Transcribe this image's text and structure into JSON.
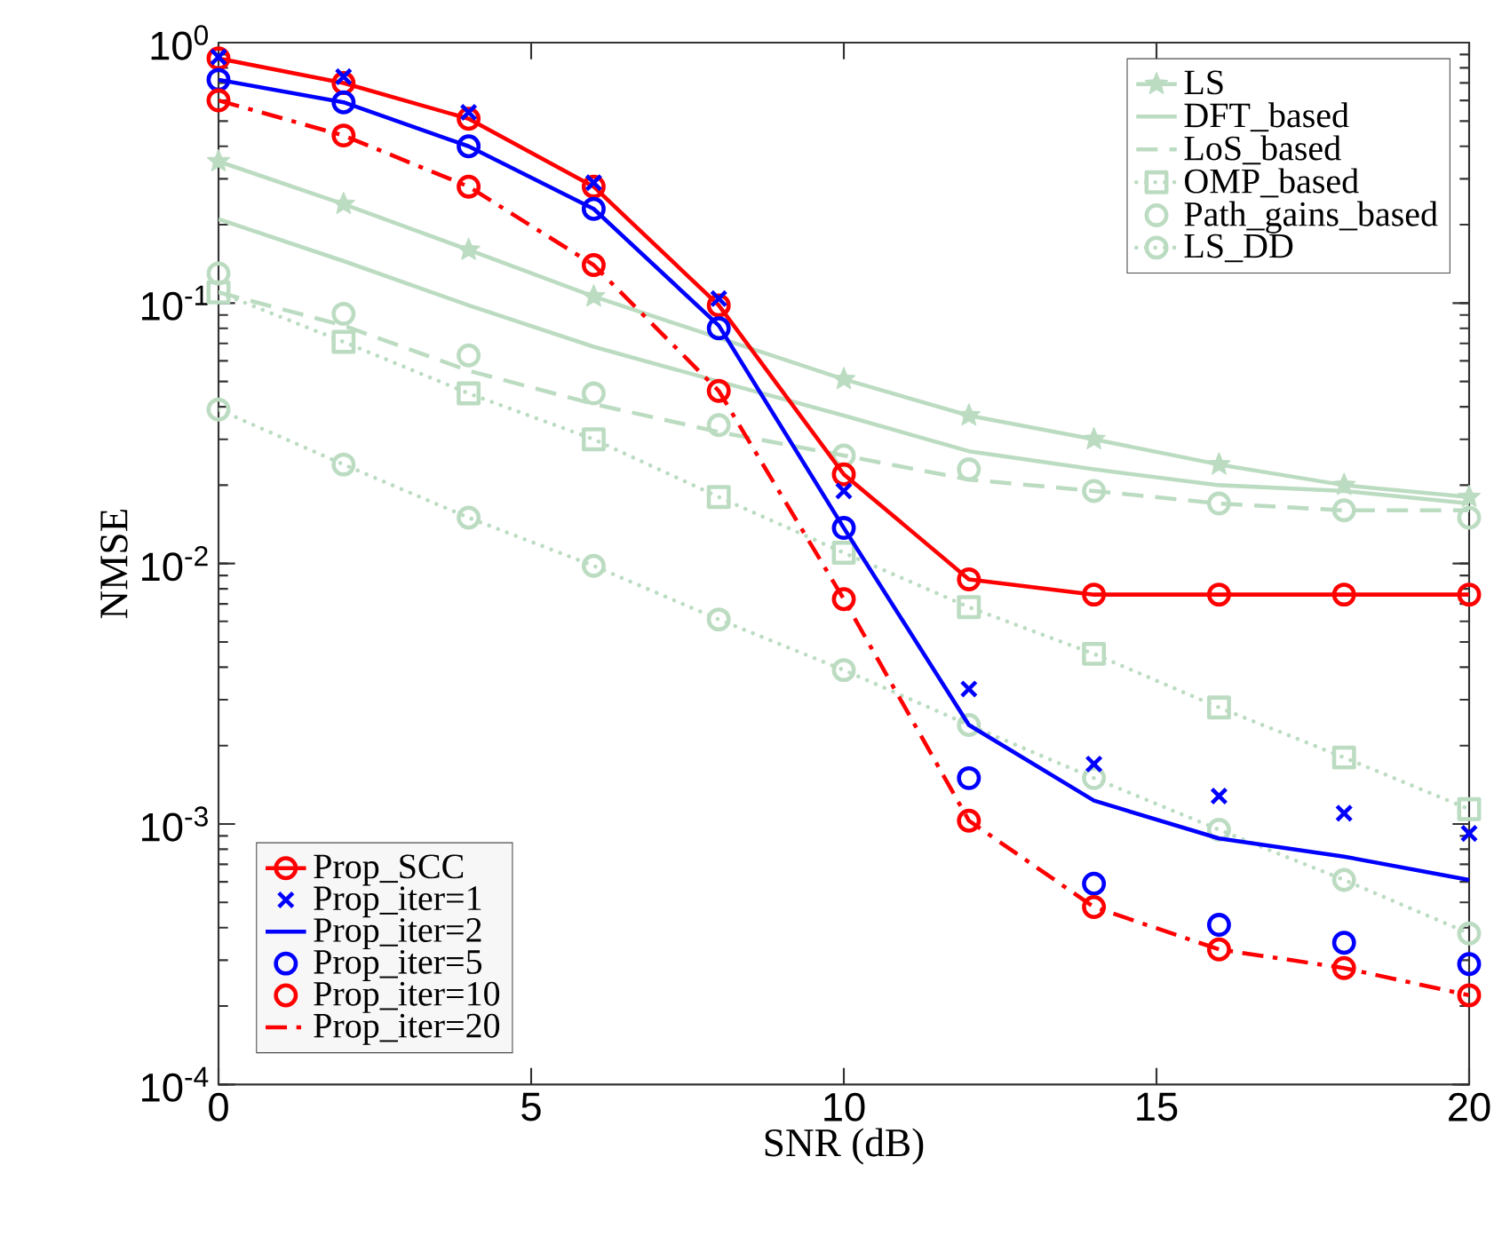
{
  "chart_data": {
    "type": "line",
    "xlabel": "SNR (dB)",
    "ylabel": "NMSE",
    "log": true,
    "grid": false,
    "legend": "top right",
    "x": [
      0,
      2,
      4,
      6,
      8,
      10,
      12,
      14,
      16,
      18,
      20
    ],
    "xlim": [
      0,
      20
    ],
    "xticks": [
      0,
      5,
      10,
      15,
      20
    ],
    "ylim": [
      0.0001,
      1
    ],
    "yticks": [
      {
        "value": 0.0001,
        "label": "10$^{-4}$"
      },
      {
        "value": 0.001,
        "label": "10$^{-3}$"
      },
      {
        "value": 0.01,
        "label": "10$^{-2}$"
      },
      {
        "value": 0.1,
        "label": "10$^{-1}$"
      },
      {
        "value": 1,
        "label": "10$^{0}$"
      }
    ],
    "series": [
      {
        "name": "LS",
        "color": "#bcdcc2",
        "line_style": "solid",
        "marker": "star",
        "values": [
          0.35,
          0.24,
          0.16,
          0.106,
          null,
          0.051,
          0.037,
          0.03,
          0.024,
          0.02,
          0.018
        ]
      },
      {
        "name": "DFT_based",
        "color": "#bcdcc2",
        "line_style": "solid",
        "marker": "none",
        "values": [
          0.21,
          0.145,
          0.098,
          0.068,
          0.05,
          0.037,
          0.027,
          0.023,
          0.02,
          0.019,
          0.017
        ]
      },
      {
        "name": "LoS_based",
        "color": "#bcdcc2",
        "line_style": "dashed",
        "marker": "none",
        "values": [
          0.11,
          0.082,
          0.055,
          0.041,
          0.032,
          0.026,
          0.021,
          0.019,
          0.017,
          0.016,
          0.016
        ]
      },
      {
        "name": "OMP_based",
        "color": "#bcdcc2",
        "line_style": "dotted",
        "marker": "square",
        "values": [
          0.11,
          0.071,
          0.045,
          0.03,
          0.018,
          0.011,
          0.0068,
          0.0045,
          0.0028,
          0.0018,
          0.00114
        ]
      },
      {
        "name": "Path_gains_based",
        "type": "scatter",
        "color": "#bcdcc2",
        "marker": "circle",
        "values": [
          0.13,
          0.091,
          0.063,
          0.045,
          0.034,
          0.026,
          0.023,
          0.019,
          0.017,
          0.016,
          0.015
        ]
      },
      {
        "name": "LS_DD",
        "color": "#bcdcc2",
        "line_style": "dotted",
        "marker": "circle",
        "values": [
          0.039,
          0.024,
          0.015,
          0.0098,
          0.0061,
          0.0039,
          0.0024,
          0.0015,
          0.00095,
          0.00061,
          0.00038
        ]
      },
      {
        "name": "Prop_SCC",
        "color": "#ff0000",
        "line_style": "solid",
        "marker": "circle",
        "values": [
          0.87,
          0.7,
          0.51,
          0.28,
          0.098,
          0.022,
          0.0087,
          0.0076,
          0.0076,
          0.0076,
          0.0076
        ]
      },
      {
        "name": "Prop_iter=1",
        "type": "scatter",
        "color": "#0000ff",
        "marker": "cross",
        "values": [
          0.88,
          0.74,
          0.54,
          0.29,
          0.104,
          0.019,
          0.0033,
          0.0017,
          0.00128,
          0.0011,
          0.00092
        ]
      },
      {
        "name": "Prop_iter=2",
        "color": "#0000ff",
        "line_style": "solid",
        "marker": "none",
        "values": [
          0.72,
          0.59,
          0.4,
          0.23,
          0.082,
          0.0137,
          0.0024,
          0.00123,
          0.00088,
          0.00075,
          0.00061
        ]
      },
      {
        "name": "Prop_iter=5",
        "type": "scatter",
        "color": "#0000ff",
        "marker": "circle",
        "values": [
          0.72,
          0.59,
          0.4,
          0.23,
          0.08,
          0.0137,
          0.0015,
          0.00059,
          0.00041,
          0.00035,
          0.00029
        ]
      },
      {
        "name": "Prop_iter=10",
        "type": "scatter",
        "color": "#ff0000",
        "marker": "circle",
        "values": [
          0.6,
          0.44,
          0.28,
          0.14,
          0.046,
          0.0073,
          0.00103,
          0.00048,
          0.00033,
          0.00028,
          0.00022
        ]
      },
      {
        "name": "Prop_iter=20",
        "color": "#ff0000",
        "line_style": "dashdot",
        "marker": "none",
        "values": [
          0.6,
          0.44,
          0.28,
          0.14,
          0.046,
          0.0073,
          0.00103,
          0.00048,
          0.00033,
          0.00028,
          0.00022
        ]
      }
    ]
  }
}
